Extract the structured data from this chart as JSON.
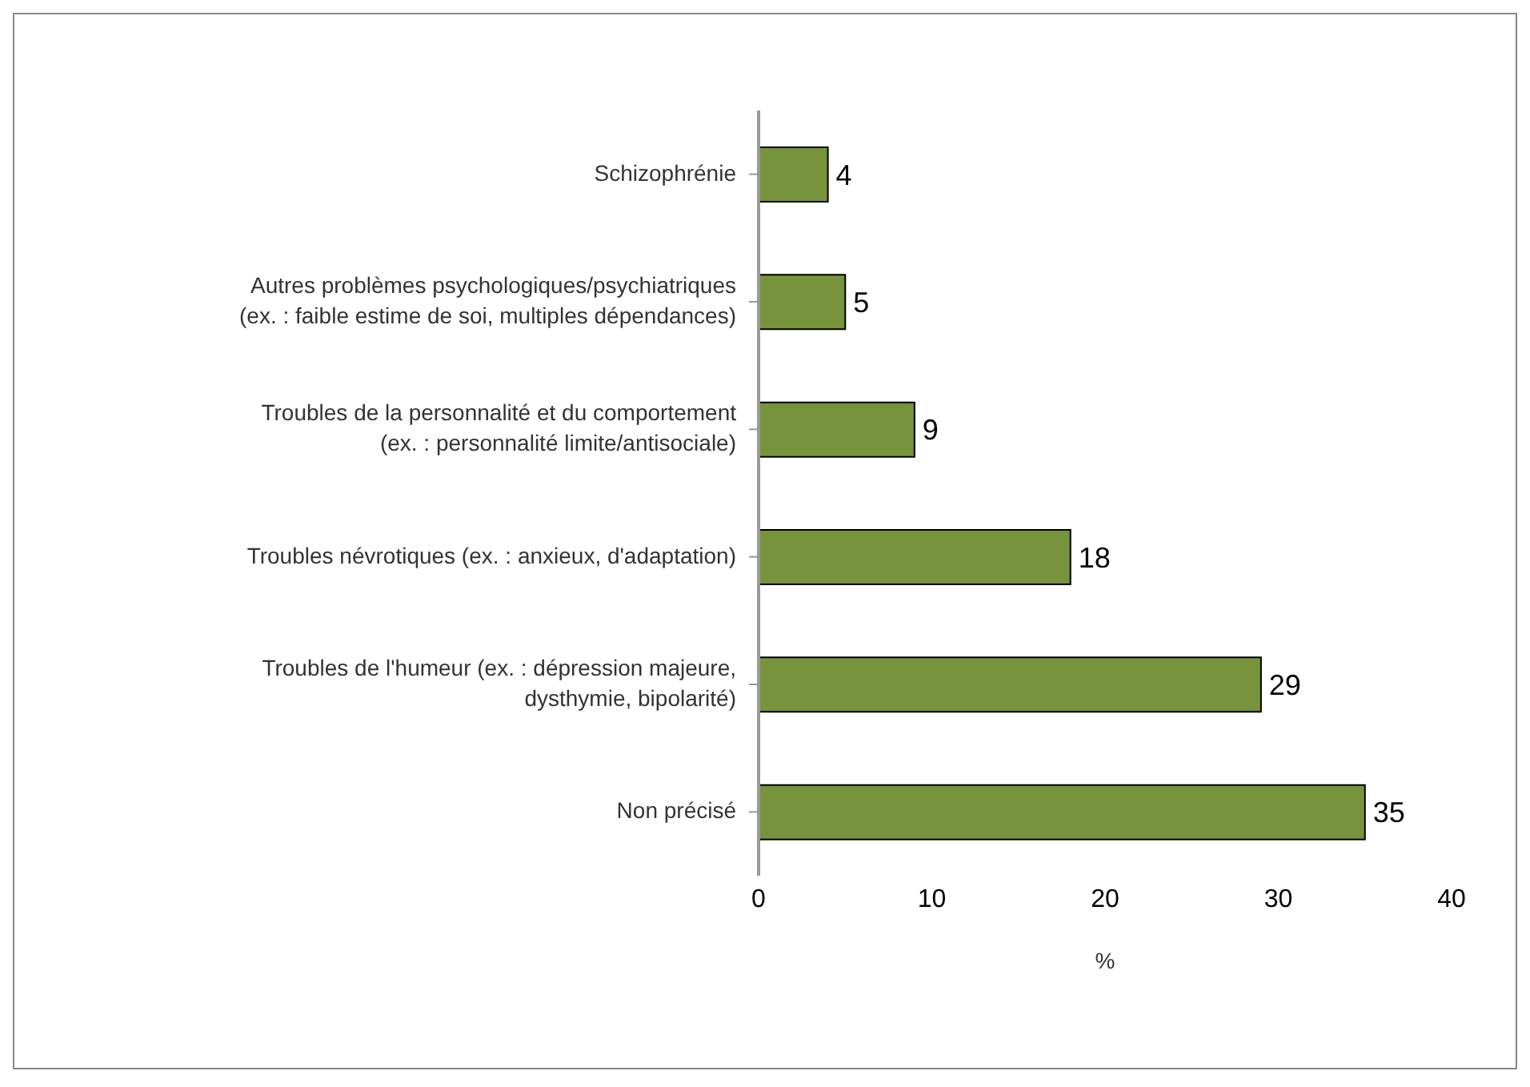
{
  "chart_data": {
    "type": "bar",
    "orientation": "horizontal",
    "categories": [
      "Schizophrénie",
      "Autres problèmes psychologiques/psychiatriques\n(ex. : faible estime de soi, multiples dépendances)",
      "Troubles de la personnalité et du comportement\n(ex. : personnalité limite/antisociale)",
      "Troubles névrotiques (ex. : anxieux, d'adaptation)",
      "Troubles de l'humeur (ex. : dépression majeure,\ndysthymie, bipolarité)",
      "Non précisé"
    ],
    "values": [
      4,
      5,
      9,
      18,
      29,
      35
    ],
    "color": "#77933c",
    "xlim": [
      0,
      40
    ],
    "xticks": [
      0,
      10,
      20,
      30,
      40
    ],
    "xlabel": "%",
    "data_labels": true,
    "grid": false
  }
}
